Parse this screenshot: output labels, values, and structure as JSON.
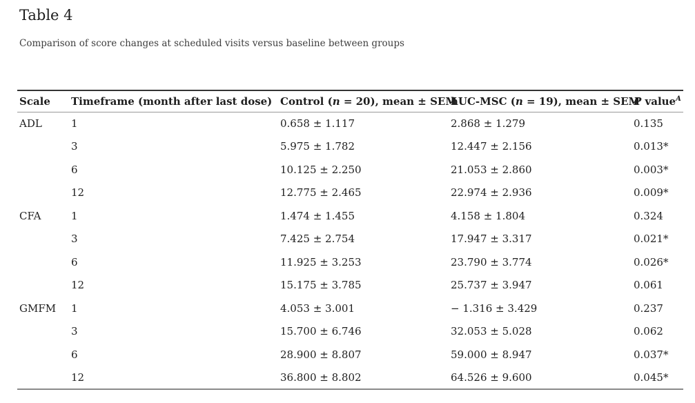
{
  "page": {
    "title": "Table 4",
    "caption": "Comparison of score changes at scheduled visits versus baseline between groups"
  },
  "table": {
    "headers": {
      "scale": "Scale",
      "timeframe": "Timeframe (month after last dose)",
      "control": {
        "pre": "Control (",
        "it": "n",
        "post": " = 20), mean ± SEM"
      },
      "hucmsc": {
        "pre": "hUC-MSC (",
        "it": "n",
        "post": " = 19), mean ± SEM"
      },
      "pvalue": {
        "it": "P",
        "post": " value",
        "sup": "A"
      }
    },
    "rows": [
      {
        "scale": "ADL",
        "timeframe": "1",
        "control": "0.658 ± 1.117",
        "hucmsc": "2.868 ± 1.279",
        "pvalue": "0.135"
      },
      {
        "scale": "",
        "timeframe": "3",
        "control": "5.975 ± 1.782",
        "hucmsc": "12.447 ± 2.156",
        "pvalue": "0.013*"
      },
      {
        "scale": "",
        "timeframe": "6",
        "control": "10.125 ± 2.250",
        "hucmsc": "21.053 ± 2.860",
        "pvalue": "0.003*"
      },
      {
        "scale": "",
        "timeframe": "12",
        "control": "12.775 ± 2.465",
        "hucmsc": "22.974 ± 2.936",
        "pvalue": "0.009*"
      },
      {
        "scale": "CFA",
        "timeframe": "1",
        "control": "1.474 ± 1.455",
        "hucmsc": "4.158 ± 1.804",
        "pvalue": "0.324"
      },
      {
        "scale": "",
        "timeframe": "3",
        "control": "7.425 ± 2.754",
        "hucmsc": "17.947 ± 3.317",
        "pvalue": "0.021*"
      },
      {
        "scale": "",
        "timeframe": "6",
        "control": "11.925 ± 3.253",
        "hucmsc": "23.790 ± 3.774",
        "pvalue": "0.026*"
      },
      {
        "scale": "",
        "timeframe": "12",
        "control": "15.175 ± 3.785",
        "hucmsc": "25.737 ± 3.947",
        "pvalue": "0.061"
      },
      {
        "scale": "GMFM",
        "timeframe": "1",
        "control": "4.053 ± 3.001",
        "hucmsc": "− 1.316 ± 3.429",
        "pvalue": "0.237"
      },
      {
        "scale": "",
        "timeframe": "3",
        "control": "15.700 ± 6.746",
        "hucmsc": "32.053 ± 5.028",
        "pvalue": "0.062"
      },
      {
        "scale": "",
        "timeframe": "6",
        "control": "28.900 ± 8.807",
        "hucmsc": "59.000 ± 8.947",
        "pvalue": "0.037*"
      },
      {
        "scale": "",
        "timeframe": "12",
        "control": "36.800 ± 8.802",
        "hucmsc": "64.526 ± 9.600",
        "pvalue": "0.045*"
      }
    ]
  },
  "colors": {
    "background": "#ffffff",
    "text": "#212121",
    "rule_top": "#333333",
    "rule_gray": "#8a8a8a"
  }
}
